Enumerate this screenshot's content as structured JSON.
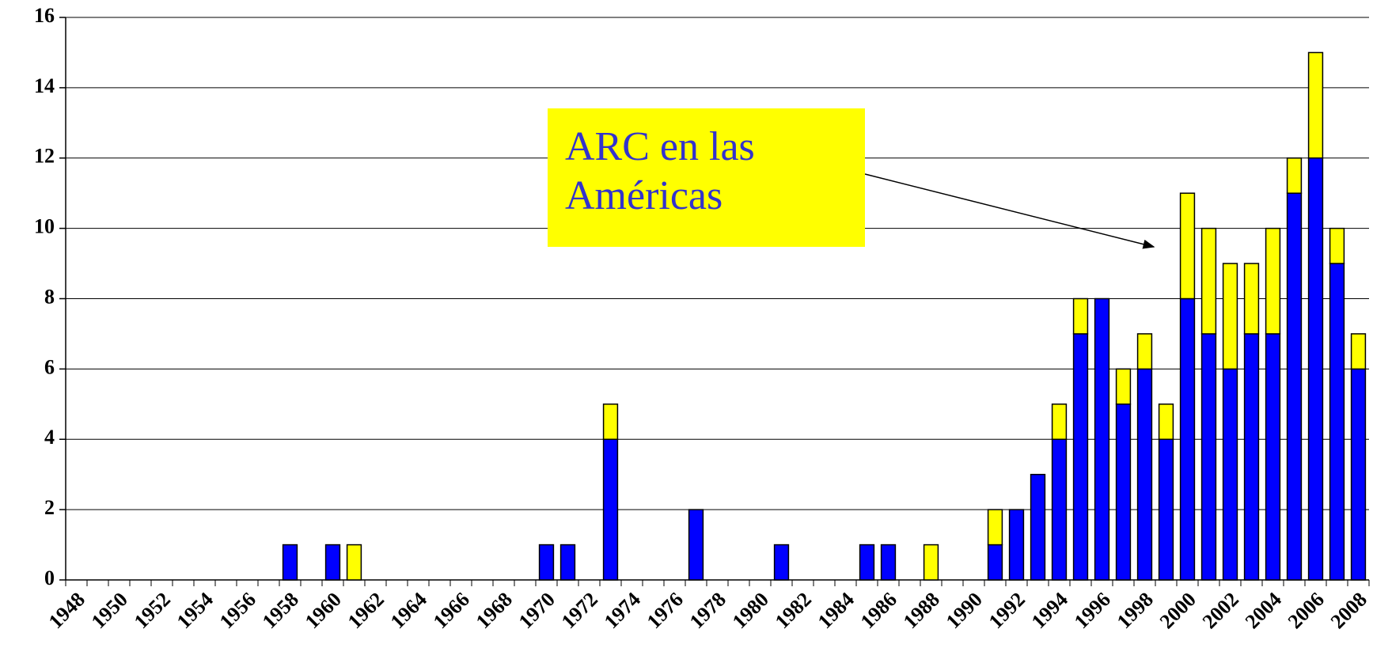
{
  "chart_data": {
    "type": "stacked_bar",
    "categories": [
      "1948",
      null,
      "1950",
      null,
      "1952",
      null,
      "1954",
      null,
      "1956",
      null,
      "1958",
      null,
      "1960",
      null,
      "1962",
      null,
      "1964",
      null,
      "1966",
      null,
      "1968",
      null,
      "1970",
      null,
      "1972",
      null,
      "1974",
      null,
      "1976",
      null,
      "1978",
      null,
      "1980",
      null,
      "1982",
      null,
      "1984",
      null,
      "1986",
      null,
      "1988",
      null,
      "1990",
      null,
      "1992",
      null,
      "1994",
      null,
      "1996",
      null,
      "1998",
      null,
      "2000",
      null,
      "2002",
      null,
      "2004",
      null,
      "2006",
      null,
      "2008"
    ],
    "series": [
      {
        "color": "#0000ff",
        "values": [
          0,
          0,
          0,
          0,
          0,
          0,
          0,
          0,
          0,
          0,
          1,
          0,
          1,
          0,
          0,
          0,
          0,
          0,
          0,
          0,
          0,
          0,
          1,
          1,
          0,
          4,
          0,
          0,
          0,
          2,
          0,
          0,
          0,
          1,
          0,
          0,
          0,
          1,
          1,
          0,
          0,
          0,
          0,
          1,
          2,
          3,
          4,
          7,
          8,
          5,
          6,
          4,
          8,
          7,
          6,
          7,
          7,
          11,
          12,
          9,
          6
        ]
      },
      {
        "color": "#ffff00",
        "values": [
          0,
          0,
          0,
          0,
          0,
          0,
          0,
          0,
          0,
          0,
          0,
          0,
          0,
          1,
          0,
          0,
          0,
          0,
          0,
          0,
          0,
          0,
          0,
          0,
          0,
          1,
          0,
          0,
          0,
          0,
          0,
          0,
          0,
          0,
          0,
          0,
          0,
          0,
          0,
          0,
          1,
          0,
          0,
          1,
          0,
          0,
          1,
          1,
          0,
          1,
          1,
          1,
          3,
          3,
          3,
          2,
          3,
          1,
          3,
          1,
          1
        ]
      }
    ],
    "ylim": [
      0,
      16
    ],
    "yticks": [
      0,
      2,
      4,
      6,
      8,
      10,
      12,
      14,
      16
    ],
    "grid": true,
    "annotation": "ARC en las Américas"
  }
}
